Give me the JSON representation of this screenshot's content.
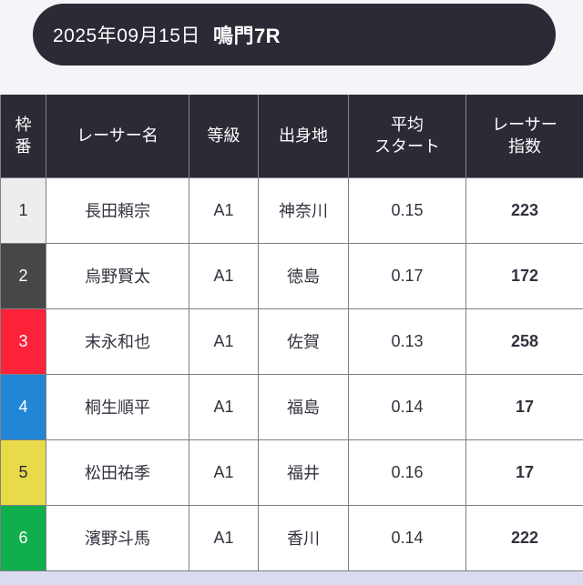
{
  "header": {
    "date": "2025年09月15日",
    "race": "鳴門7R",
    "bg_color": "#2d2935"
  },
  "table": {
    "columns": {
      "waku": "枠\n番",
      "name": "レーサー名",
      "grade": "等級",
      "origin": "出身地",
      "avg_start": "平均\nスタート",
      "index": "レーサー\n指数"
    },
    "rows": [
      {
        "waku": "1",
        "waku_bg": "#ededed",
        "waku_fg": "#2b2b33",
        "name": "長田頼宗",
        "grade": "A1",
        "origin": "神奈川",
        "avg_start": "0.15",
        "index": "223"
      },
      {
        "waku": "2",
        "waku_bg": "#474747",
        "waku_fg": "#ffffff",
        "name": "烏野賢太",
        "grade": "A1",
        "origin": "徳島",
        "avg_start": "0.17",
        "index": "172"
      },
      {
        "waku": "3",
        "waku_bg": "#fb2239",
        "waku_fg": "#ffffff",
        "name": "末永和也",
        "grade": "A1",
        "origin": "佐賀",
        "avg_start": "0.13",
        "index": "258"
      },
      {
        "waku": "4",
        "waku_bg": "#2086d5",
        "waku_fg": "#ffffff",
        "name": "桐生順平",
        "grade": "A1",
        "origin": "福島",
        "avg_start": "0.14",
        "index": "17"
      },
      {
        "waku": "5",
        "waku_bg": "#e9da49",
        "waku_fg": "#2b2b33",
        "name": "松田祐季",
        "grade": "A1",
        "origin": "福井",
        "avg_start": "0.16",
        "index": "17"
      },
      {
        "waku": "6",
        "waku_bg": "#10ae4c",
        "waku_fg": "#ffffff",
        "name": "濱野斗馬",
        "grade": "A1",
        "origin": "香川",
        "avg_start": "0.14",
        "index": "222"
      }
    ]
  }
}
